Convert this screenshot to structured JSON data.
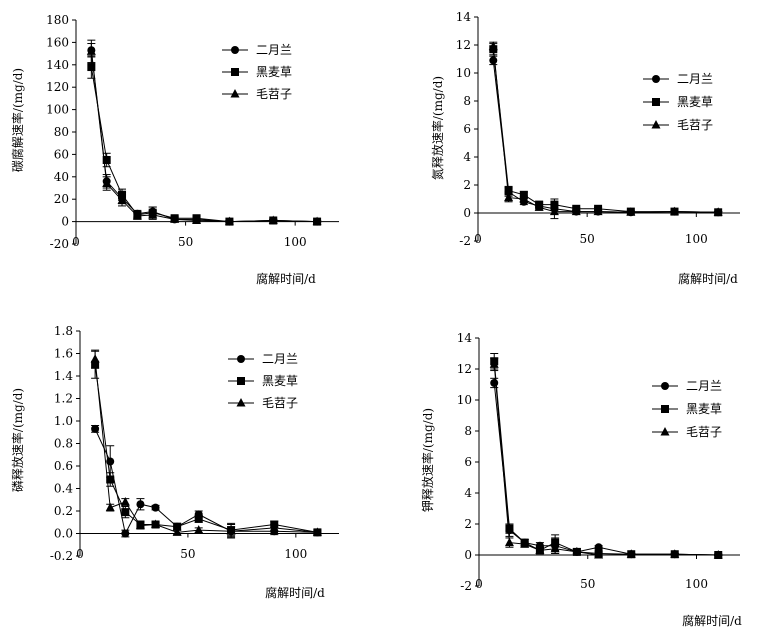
{
  "figure_title": "",
  "chart_data": [
    {
      "type": "line",
      "ylabel": "碳腐解速率/(mg/d)",
      "xlabel": "腐解时间/d",
      "xlim": [
        0,
        120
      ],
      "ylim": [
        -20,
        180
      ],
      "xticks": [
        0,
        50,
        100
      ],
      "yticks": [
        -20,
        0,
        20,
        40,
        60,
        80,
        100,
        120,
        140,
        160,
        180
      ],
      "legend_position": "top-right",
      "series": [
        {
          "name": "二月兰",
          "marker": "circle",
          "x": [
            7,
            14,
            21,
            28,
            35,
            45,
            55,
            70,
            90,
            110
          ],
          "y": [
            153,
            36,
            21,
            7,
            9,
            2,
            2,
            0,
            1,
            0
          ],
          "err": [
            6,
            6,
            5,
            3,
            4,
            2,
            2,
            1,
            1,
            1
          ]
        },
        {
          "name": "黑麦草",
          "marker": "square",
          "x": [
            7,
            14,
            21,
            28,
            35,
            45,
            55,
            70,
            90,
            110
          ],
          "y": [
            138,
            55,
            24,
            6,
            8,
            3,
            3,
            0,
            1,
            0
          ],
          "err": [
            10,
            6,
            5,
            3,
            5,
            2,
            2,
            1,
            1,
            1
          ]
        },
        {
          "name": "毛苕子",
          "marker": "triangle",
          "x": [
            7,
            14,
            21,
            28,
            35,
            45,
            55,
            70,
            90,
            110
          ],
          "y": [
            152,
            34,
            19,
            5,
            6,
            2,
            1,
            0,
            1,
            0
          ],
          "err": [
            10,
            6,
            5,
            3,
            4,
            2,
            2,
            1,
            1,
            1
          ]
        }
      ]
    },
    {
      "type": "line",
      "ylabel": "氮释放速率/(mg/d)",
      "xlabel": "腐解时间/d",
      "xlim": [
        0,
        120
      ],
      "ylim": [
        -2,
        14
      ],
      "xticks": [
        0,
        50,
        100
      ],
      "yticks": [
        -2,
        0,
        2,
        4,
        6,
        8,
        10,
        12,
        14
      ],
      "legend_position": "top-right",
      "series": [
        {
          "name": "二月兰",
          "marker": "circle",
          "x": [
            7,
            14,
            21,
            28,
            35,
            45,
            55,
            70,
            90,
            110
          ],
          "y": [
            10.9,
            1.5,
            0.8,
            0.5,
            0.3,
            0.1,
            0.1,
            0.05,
            0.1,
            0.05
          ],
          "err": [
            0.3,
            0.3,
            0.2,
            0.2,
            0.3,
            0.1,
            0.1,
            0.05,
            0.05,
            0.05
          ]
        },
        {
          "name": "黑麦草",
          "marker": "square",
          "x": [
            7,
            14,
            21,
            28,
            35,
            45,
            55,
            70,
            90,
            110
          ],
          "y": [
            11.7,
            1.6,
            1.3,
            0.6,
            0.6,
            0.3,
            0.3,
            0.1,
            0.1,
            0.05
          ],
          "err": [
            0.4,
            0.3,
            0.2,
            0.2,
            0.4,
            0.1,
            0.1,
            0.05,
            0.05,
            0.05
          ]
        },
        {
          "name": "毛苕子",
          "marker": "triangle",
          "x": [
            7,
            14,
            21,
            28,
            35,
            45,
            55,
            70,
            90,
            110
          ],
          "y": [
            11.9,
            1.1,
            1.0,
            0.4,
            0.1,
            0.1,
            0.1,
            0.05,
            0.1,
            0.05
          ],
          "err": [
            0.3,
            0.3,
            0.2,
            0.2,
            0.5,
            0.1,
            0.1,
            0.05,
            0.05,
            0.05
          ]
        }
      ]
    },
    {
      "type": "line",
      "ylabel": "磷释放速率/(mg/d)",
      "xlabel": "腐解时间/d",
      "xlim": [
        0,
        120
      ],
      "ylim": [
        -0.2,
        1.8
      ],
      "xticks": [
        0,
        50,
        100
      ],
      "yticks": [
        -0.2,
        0.0,
        0.2,
        0.4,
        0.6,
        0.8,
        1.0,
        1.2,
        1.4,
        1.6,
        1.8
      ],
      "ytick_labels": [
        "-0.2",
        "0.0",
        "0.2",
        "0.4",
        "0.6",
        "0.8",
        "1.0",
        "1.2",
        "1.4",
        "1.6",
        "1.8"
      ],
      "legend_position": "top-right",
      "series": [
        {
          "name": "二月兰",
          "marker": "circle",
          "x": [
            7,
            14,
            21,
            28,
            35,
            45,
            55,
            70,
            90,
            110
          ],
          "y": [
            0.93,
            0.64,
            0.0,
            0.26,
            0.23,
            0.06,
            0.17,
            0.02,
            0.02,
            0.01
          ],
          "err": [
            0.03,
            0.14,
            0.03,
            0.05,
            0.02,
            0.03,
            0.03,
            0.06,
            0.03,
            0.02
          ]
        },
        {
          "name": "黑麦草",
          "marker": "square",
          "x": [
            7,
            14,
            21,
            28,
            35,
            45,
            55,
            70,
            90,
            110
          ],
          "y": [
            1.5,
            0.48,
            0.19,
            0.08,
            0.08,
            0.06,
            0.13,
            0.03,
            0.08,
            0.01
          ],
          "err": [
            0.12,
            0.06,
            0.05,
            0.03,
            0.02,
            0.03,
            0.03,
            0.06,
            0.03,
            0.02
          ]
        },
        {
          "name": "毛苕子",
          "marker": "triangle",
          "x": [
            7,
            14,
            21,
            28,
            35,
            45,
            55,
            70,
            90,
            110
          ],
          "y": [
            1.55,
            0.23,
            0.28,
            0.07,
            0.08,
            0.01,
            0.03,
            0.02,
            0.05,
            0.01
          ],
          "err": [
            0.08,
            0.03,
            0.03,
            0.03,
            0.02,
            0.02,
            0.02,
            0.04,
            0.03,
            0.02
          ]
        }
      ]
    },
    {
      "type": "line",
      "ylabel": "钾释放速率/(mg/d)",
      "xlabel": "腐解时间/d",
      "xlim": [
        0,
        120
      ],
      "ylim": [
        -2,
        14
      ],
      "xticks": [
        0,
        50,
        100
      ],
      "yticks": [
        -2,
        0,
        2,
        4,
        6,
        8,
        10,
        12,
        14
      ],
      "legend_position": "top-right",
      "series": [
        {
          "name": "二月兰",
          "marker": "circle",
          "x": [
            7,
            14,
            21,
            28,
            35,
            45,
            55,
            70,
            90,
            110
          ],
          "y": [
            11.1,
            1.6,
            0.8,
            0.6,
            0.6,
            0.2,
            0.5,
            0.05,
            0.05,
            0.0
          ],
          "err": [
            0.3,
            0.4,
            0.2,
            0.2,
            0.5,
            0.2,
            0.1,
            0.05,
            0.05,
            0.05
          ]
        },
        {
          "name": "黑麦草",
          "marker": "square",
          "x": [
            7,
            14,
            21,
            28,
            35,
            45,
            55,
            70,
            90,
            110
          ],
          "y": [
            12.5,
            1.7,
            0.8,
            0.3,
            0.8,
            0.2,
            0.1,
            0.05,
            0.05,
            0.0
          ],
          "err": [
            0.5,
            0.3,
            0.2,
            0.2,
            0.5,
            0.2,
            0.1,
            0.05,
            0.05,
            0.05
          ]
        },
        {
          "name": "毛苕子",
          "marker": "triangle",
          "x": [
            7,
            14,
            21,
            28,
            35,
            45,
            55,
            70,
            90,
            110
          ],
          "y": [
            12.3,
            0.8,
            0.7,
            0.3,
            0.4,
            0.2,
            0.0,
            0.05,
            0.05,
            0.0
          ],
          "err": [
            0.4,
            0.3,
            0.2,
            0.2,
            0.3,
            0.1,
            0.1,
            0.05,
            0.05,
            0.05
          ]
        }
      ]
    }
  ]
}
